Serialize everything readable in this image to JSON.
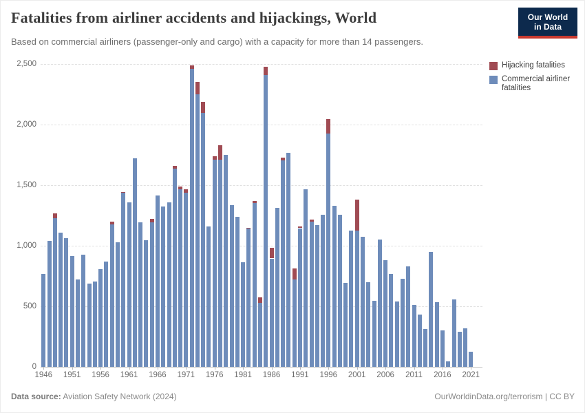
{
  "header": {
    "title": "Fatalities from airliner accidents and hijackings, World",
    "subtitle": "Based on commercial airliners (passenger-only and cargo) with a capacity for more than 14 passengers.",
    "logo": {
      "line1": "Our World",
      "line2": "in Data"
    }
  },
  "colors": {
    "hijacking": "#a04b53",
    "commercial": "#6e8cba",
    "logo_navy": "#0d2a4d",
    "logo_red": "#c8392f"
  },
  "legend": [
    {
      "label": "Hijacking fatalities",
      "color": "#a04b53"
    },
    {
      "label": "Commercial airliner fatalities",
      "color": "#6e8cba"
    }
  ],
  "chart_data": {
    "type": "bar",
    "stacked": true,
    "title": "Fatalities from airliner accidents and hijackings, World",
    "xlabel": "",
    "ylabel": "",
    "ylim": [
      0,
      2500
    ],
    "grid": "dashed-horizontal",
    "legend_position": "right",
    "yticks": [
      {
        "value": 0,
        "label": "0"
      },
      {
        "value": 500,
        "label": "500"
      },
      {
        "value": 1000,
        "label": "1,000"
      },
      {
        "value": 1500,
        "label": "1,500"
      },
      {
        "value": 2000,
        "label": "2,000"
      },
      {
        "value": 2500,
        "label": "2,500"
      }
    ],
    "xticks": [
      1946,
      1951,
      1956,
      1961,
      1966,
      1971,
      1976,
      1981,
      1986,
      1991,
      1996,
      2001,
      2006,
      2011,
      2016,
      2021
    ],
    "years": [
      1946,
      1947,
      1948,
      1949,
      1950,
      1951,
      1952,
      1953,
      1954,
      1955,
      1956,
      1957,
      1958,
      1959,
      1960,
      1961,
      1962,
      1963,
      1964,
      1965,
      1966,
      1967,
      1968,
      1969,
      1970,
      1971,
      1972,
      1973,
      1974,
      1975,
      1976,
      1977,
      1978,
      1979,
      1980,
      1981,
      1982,
      1983,
      1984,
      1985,
      1986,
      1987,
      1988,
      1989,
      1990,
      1991,
      1992,
      1993,
      1994,
      1995,
      1996,
      1997,
      1998,
      1999,
      2000,
      2001,
      2002,
      2003,
      2004,
      2005,
      2006,
      2007,
      2008,
      2009,
      2010,
      2011,
      2012,
      2013,
      2014,
      2015,
      2016,
      2017,
      2018,
      2019,
      2020,
      2021
    ],
    "series": [
      {
        "name": "Commercial airliner fatalities",
        "color": "#6e8cba",
        "values": [
          770,
          1040,
          1230,
          1110,
          1060,
          915,
          720,
          925,
          690,
          705,
          805,
          870,
          1175,
          1030,
          1435,
          1360,
          1720,
          1195,
          1045,
          1195,
          1415,
          1325,
          1360,
          1635,
          1465,
          1440,
          2462,
          2250,
          2095,
          1160,
          1712,
          1710,
          1750,
          1335,
          1240,
          865,
          1140,
          1350,
          530,
          2407,
          895,
          1315,
          1705,
          1770,
          720,
          1145,
          1465,
          1200,
          1170,
          1255,
          1925,
          1330,
          1255,
          695,
          1125,
          1123,
          1075,
          700,
          545,
          1050,
          880,
          770,
          540,
          730,
          830,
          510,
          430,
          310,
          950,
          536,
          300,
          45,
          555,
          290,
          320,
          125
        ]
      },
      {
        "name": "Hijacking fatalities",
        "color": "#a04b53",
        "values": [
          0,
          0,
          40,
          0,
          0,
          0,
          0,
          0,
          0,
          0,
          0,
          0,
          25,
          0,
          10,
          0,
          0,
          0,
          0,
          25,
          0,
          0,
          0,
          25,
          22,
          25,
          25,
          105,
          90,
          0,
          25,
          118,
          0,
          0,
          0,
          0,
          10,
          20,
          45,
          70,
          90,
          0,
          20,
          0,
          95,
          15,
          0,
          15,
          0,
          0,
          120,
          0,
          0,
          0,
          0,
          260,
          0,
          0,
          0,
          0,
          0,
          0,
          0,
          0,
          0,
          0,
          0,
          0,
          0,
          0,
          0,
          0,
          0,
          0,
          0,
          0
        ]
      }
    ]
  },
  "footer": {
    "source_label": "Data source:",
    "source_text": " Aviation Safety Network (2024)",
    "credit": "OurWorldinData.org/terrorism | CC BY"
  }
}
